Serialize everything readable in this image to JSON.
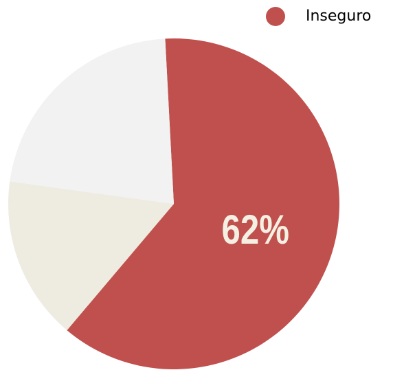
{
  "chart_data": {
    "type": "pie",
    "categories": [
      "Inseguro",
      null,
      null
    ],
    "values": [
      62,
      16,
      22
    ],
    "value_labels": [
      "62%",
      null,
      null
    ],
    "colors": [
      "#c0504d",
      "#eeebe1",
      "#f2f2f2"
    ],
    "legend": "top-right"
  }
}
